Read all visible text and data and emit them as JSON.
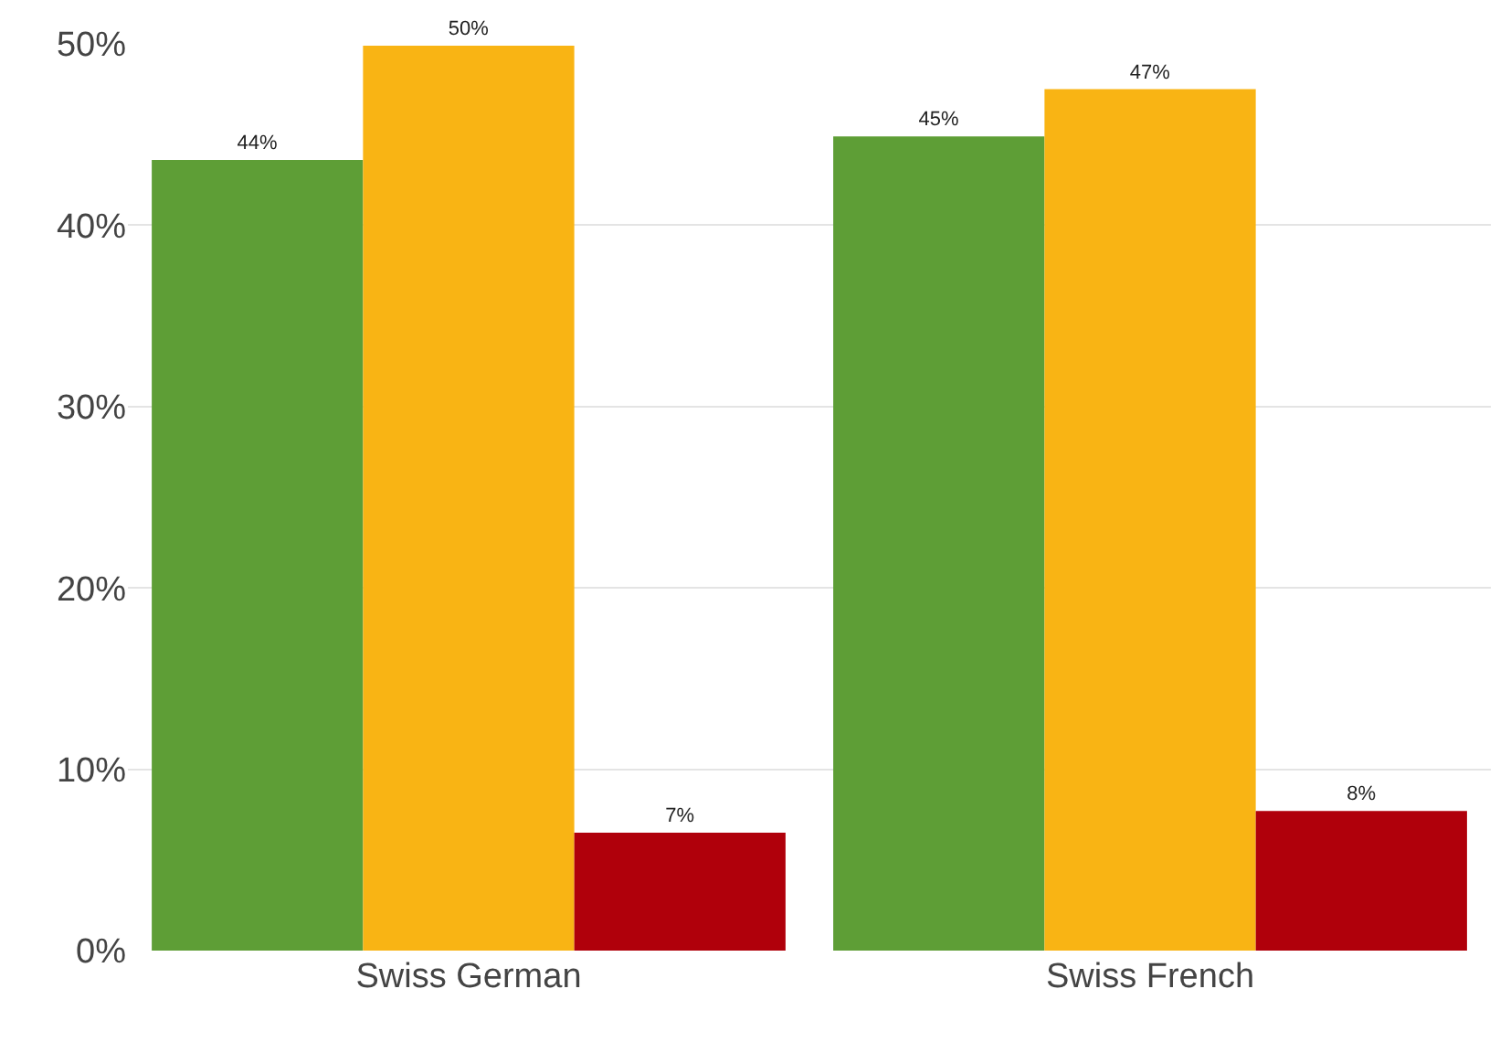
{
  "chart_data": {
    "type": "bar",
    "categories": [
      "Swiss German",
      "Swiss French"
    ],
    "series": [
      {
        "color": "#5e9e36",
        "values": [
          43.6,
          44.9
        ],
        "value_labels": [
          "44%",
          "45%"
        ]
      },
      {
        "color": "#f9b414",
        "values": [
          49.9,
          47.5
        ],
        "value_labels": [
          "50%",
          "47%"
        ]
      },
      {
        "color": "#b0000b",
        "values": [
          6.5,
          7.7
        ],
        "value_labels": [
          "7%",
          "8%"
        ]
      }
    ],
    "ylim": [
      0,
      50
    ],
    "yticks": [
      {
        "value": 0,
        "label": "0%"
      },
      {
        "value": 10,
        "label": "10%"
      },
      {
        "value": 20,
        "label": "20%"
      },
      {
        "value": 30,
        "label": "30%"
      },
      {
        "value": 40,
        "label": "40%"
      },
      {
        "value": 50,
        "label": "50%"
      }
    ],
    "grid": "y"
  }
}
